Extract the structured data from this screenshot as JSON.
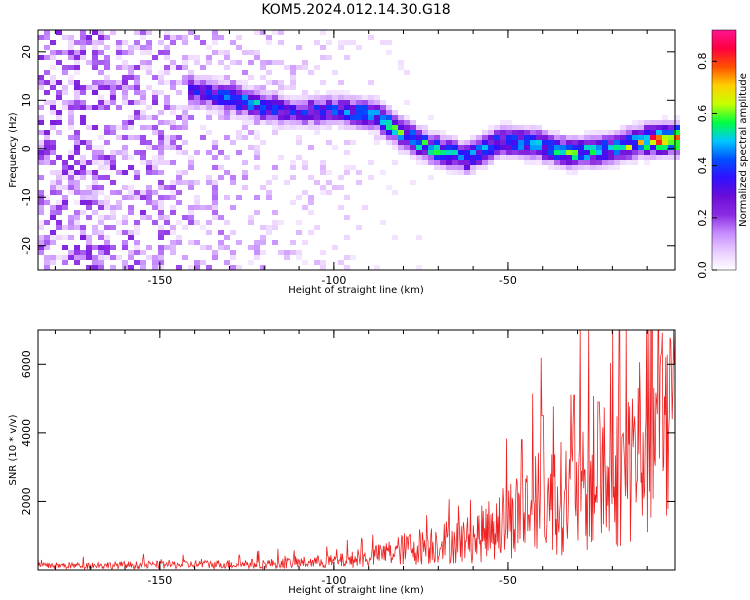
{
  "title": "KOM5.2024.012.14.30.G18",
  "chart_data": [
    {
      "type": "heatmap",
      "xlabel": "Height of straight line (km)",
      "ylabel": "Frequency (Hz)",
      "xlim": [
        -185,
        -2
      ],
      "ylim": [
        -25,
        24.5
      ],
      "xticks": [
        -150,
        -100,
        -50
      ],
      "xtick_labels": [
        "-150",
        "-100",
        "-50"
      ],
      "yticks": [
        20,
        10,
        0,
        -10,
        -20
      ],
      "ytick_labels": [
        "20",
        "10",
        "0",
        "-10",
        "-20"
      ],
      "colormap": [
        "#ffffff",
        "#e8ccff",
        "#c68cff",
        "#8a2be2",
        "#6a0dd8",
        "#3010ff",
        "#0050ff",
        "#00c8ff",
        "#00ff40",
        "#c8ff00",
        "#ffd000",
        "#ff5000",
        "#ff0040",
        "#ff1493"
      ],
      "colorbar": {
        "label": "Normalized spectral amplitude",
        "ticks": [
          0.0,
          0.2,
          0.4,
          0.6,
          0.8
        ],
        "tick_labels": [
          "0.0",
          "0.2",
          "0.4",
          "0.6",
          "0.8"
        ],
        "range": [
          0,
          0.92
        ]
      },
      "ridge": {
        "x": [
          -140,
          -130,
          -122,
          -112,
          -100,
          -88,
          -80,
          -72,
          -62,
          -52,
          -42,
          -32,
          -20,
          -12,
          -5
        ],
        "y": [
          12,
          10.5,
          9,
          7.5,
          8,
          7,
          3,
          0,
          -2,
          1.5,
          1,
          -1,
          0,
          1.5,
          2
        ],
        "peak": [
          0.35,
          0.45,
          0.5,
          0.35,
          0.4,
          0.5,
          0.55,
          0.55,
          0.5,
          0.45,
          0.5,
          0.55,
          0.5,
          0.7,
          0.92
        ]
      }
    },
    {
      "type": "line",
      "xlabel": "Height of straight line (km)",
      "ylabel": "SNR (10 * v/v)",
      "xlim": [
        -185,
        -2
      ],
      "ylim": [
        0,
        7000
      ],
      "xticks": [
        -150,
        -100,
        -50
      ],
      "xtick_labels": [
        "-150",
        "-100",
        "-50"
      ],
      "yticks": [
        2000,
        4000,
        6000
      ],
      "ytick_labels": [
        "2000",
        "4000",
        "6000"
      ],
      "color": "#ee2222",
      "trend": {
        "x": [
          -185,
          -150,
          -120,
          -100,
          -90,
          -80,
          -70,
          -60,
          -50,
          -40,
          -30,
          -20,
          -10,
          -2
        ],
        "y": [
          120,
          150,
          180,
          250,
          350,
          600,
          800,
          900,
          1500,
          2000,
          2200,
          2500,
          4000,
          4800
        ]
      },
      "peaks": [
        {
          "x": -18,
          "y": 7000
        },
        {
          "x": -31,
          "y": 5100
        },
        {
          "x": -40,
          "y": 4500
        },
        {
          "x": -46,
          "y": 3800
        },
        {
          "x": -2,
          "y": 6000
        },
        {
          "x": -24,
          "y": 4900
        }
      ]
    }
  ]
}
